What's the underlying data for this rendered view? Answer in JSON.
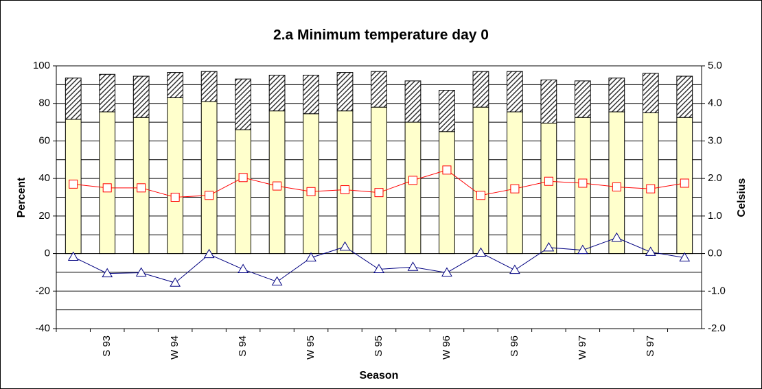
{
  "chart_data": {
    "type": "bar_line",
    "title": "2.a Minimum temperature day 0",
    "x_label": "Season",
    "y_label": "Percent",
    "y2_label": "Celsius",
    "categories": [
      null,
      "S 93",
      null,
      "W 94",
      null,
      "S 94",
      null,
      "W 95",
      null,
      "S 95",
      null,
      "W 96",
      null,
      "S 96",
      null,
      "W 97",
      null,
      "S 97",
      null
    ],
    "ylim": [
      -40,
      100
    ],
    "yticks": [
      -40,
      -20,
      0,
      20,
      40,
      60,
      80,
      100
    ],
    "yminor_ticks": [
      -30,
      -10,
      10,
      30,
      50,
      70,
      90
    ],
    "y2lim": [
      -2,
      5
    ],
    "y2ticks": [
      {
        "value": -2,
        "label": "-2.0"
      },
      {
        "value": -1,
        "label": "-1.0"
      },
      {
        "value": 0,
        "label": "0.0"
      },
      {
        "value": 1,
        "label": "1.0"
      },
      {
        "value": 2,
        "label": "2.0"
      },
      {
        "value": 3,
        "label": "3.0"
      },
      {
        "value": 4,
        "label": "4.0"
      },
      {
        "value": 5,
        "label": "5.0"
      }
    ],
    "grid": true,
    "series": [
      {
        "kind": "bar",
        "color": "#ffffcc",
        "values": [
          71.5,
          75.5,
          72.5,
          83,
          81,
          66,
          76,
          74.5,
          76,
          78,
          70,
          65,
          78,
          75.5,
          69.5,
          72.5,
          75.5,
          75,
          72.5
        ]
      },
      {
        "kind": "bar",
        "color": "#333333",
        "pattern": "hatch",
        "values": [
          22,
          20,
          22,
          13.5,
          16,
          27,
          19,
          20.5,
          20.5,
          19,
          22,
          22,
          19,
          21.5,
          23,
          19.5,
          18,
          21,
          22
        ]
      },
      {
        "kind": "line",
        "color": "#ff0000",
        "marker": "square",
        "values": [
          37,
          35,
          35,
          30,
          31,
          40.5,
          36,
          33,
          34,
          32.5,
          39,
          44.5,
          31,
          34.5,
          38.5,
          37.5,
          35.5,
          34.5,
          37.5
        ]
      },
      {
        "kind": "line",
        "color": "#000080",
        "marker": "triangle",
        "axis": "y2",
        "values": [
          -0.09,
          -0.53,
          -0.51,
          -0.78,
          -0.02,
          -0.42,
          -0.75,
          -0.11,
          0.18,
          -0.42,
          -0.36,
          -0.51,
          0.02,
          -0.44,
          0.16,
          0.09,
          0.42,
          0.04,
          -0.11
        ]
      }
    ]
  }
}
